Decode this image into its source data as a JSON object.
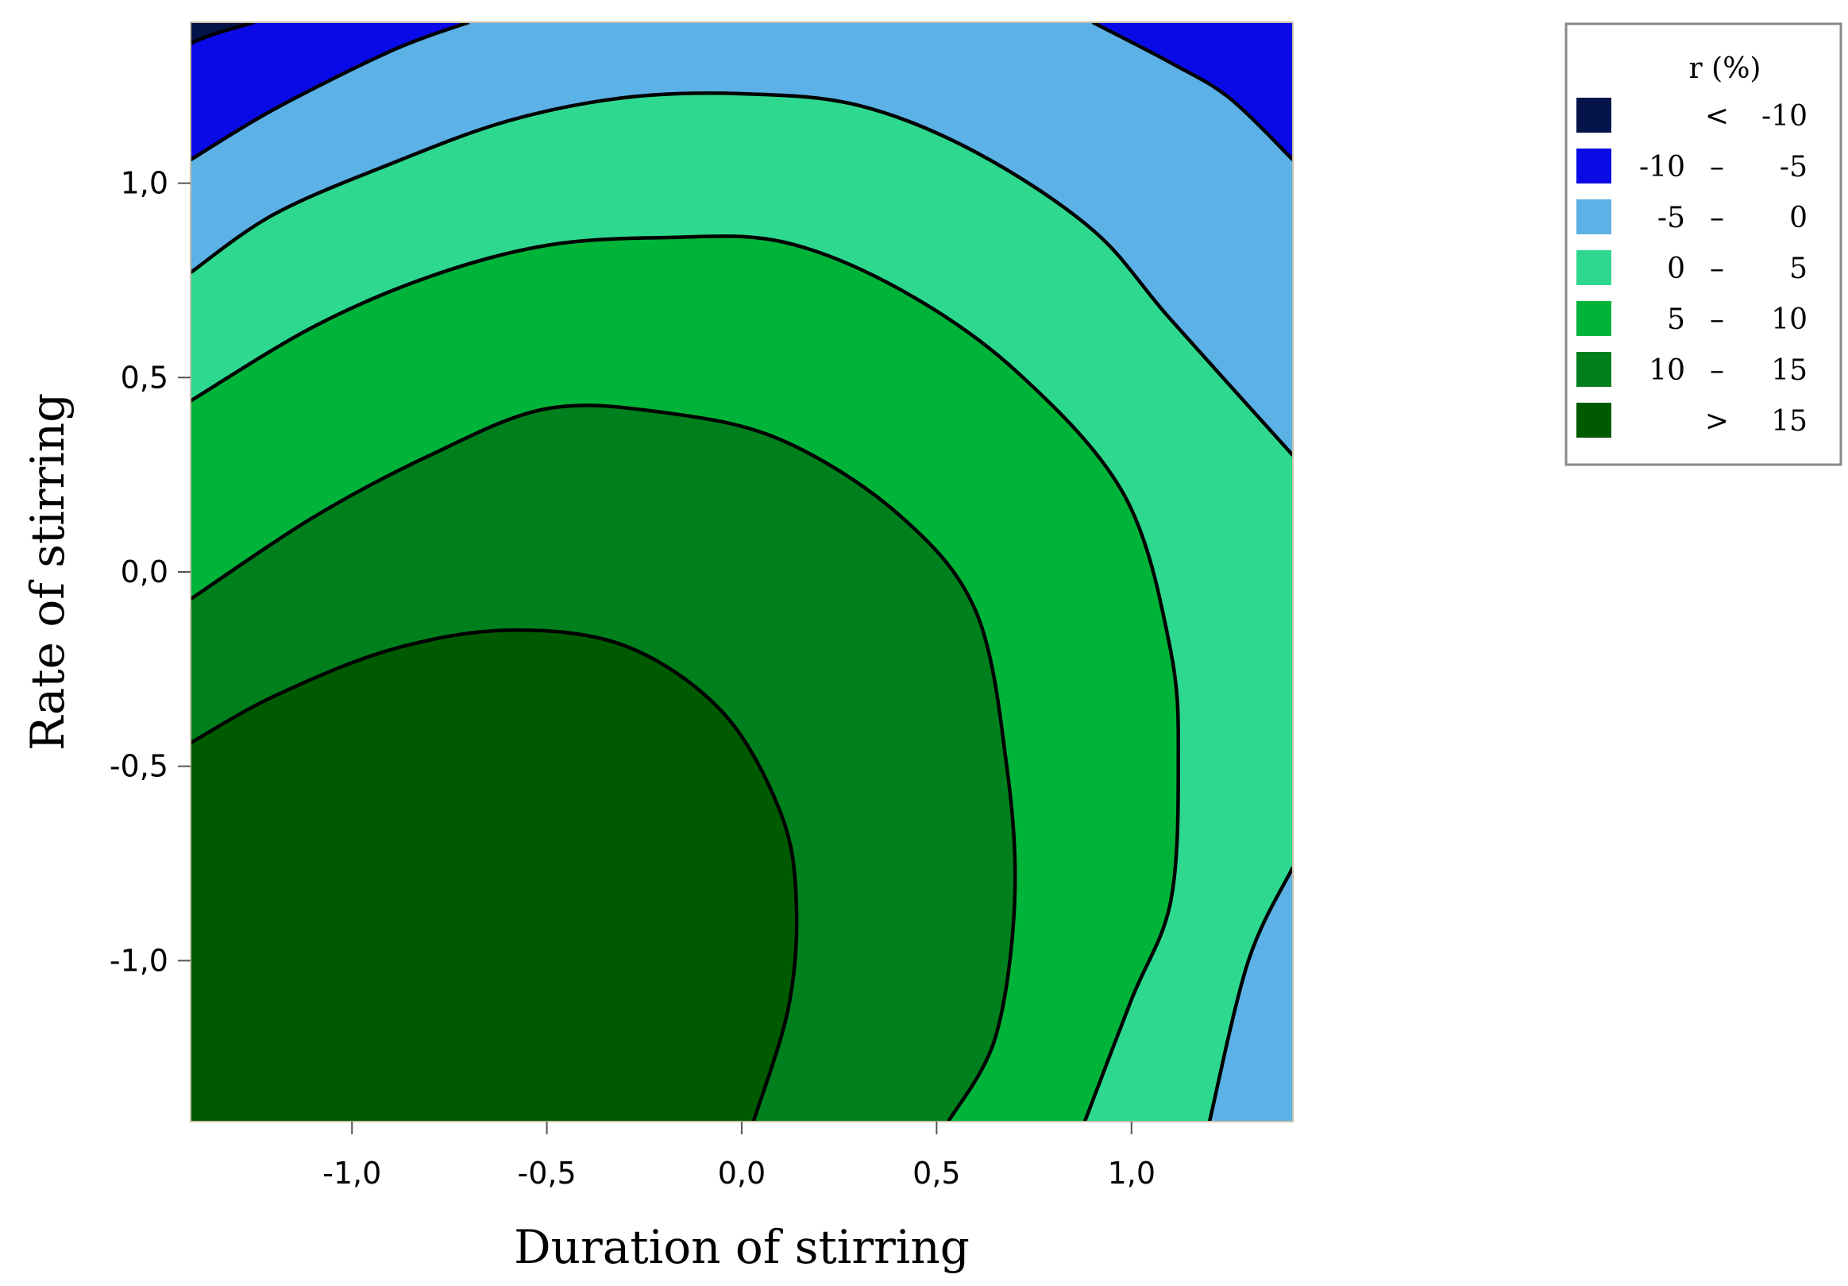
{
  "chart_data": {
    "type": "contour",
    "xlabel": "Duration of stirring",
    "ylabel": "Rate of stirring",
    "xlim": [
      -1.414,
      1.414
    ],
    "ylim": [
      -1.414,
      1.414
    ],
    "xticks": [
      -1.0,
      -0.5,
      0.0,
      0.5,
      1.0
    ],
    "yticks": [
      -1.0,
      -0.5,
      0.0,
      0.5,
      1.0
    ],
    "xtick_labels": [
      "-1,0",
      "-0,5",
      "0,0",
      "0,5",
      "1,0"
    ],
    "ytick_labels": [
      "-1,0",
      "-0,5",
      "0,0",
      "0,5",
      "1,0"
    ],
    "contour_levels": [
      -10,
      -5,
      0,
      5,
      10,
      15
    ],
    "contour_lines": [
      {
        "level": 15,
        "points": [
          [
            -1.414,
            -0.44
          ],
          [
            -1.2,
            -0.32
          ],
          [
            -0.9,
            -0.2
          ],
          [
            -0.6,
            -0.15
          ],
          [
            -0.3,
            -0.19
          ],
          [
            -0.05,
            -0.36
          ],
          [
            0.1,
            -0.62
          ],
          [
            0.14,
            -0.85
          ],
          [
            0.12,
            -1.12
          ],
          [
            0.03,
            -1.414
          ]
        ]
      },
      {
        "level": 10,
        "points": [
          [
            -1.414,
            -0.07
          ],
          [
            -1.1,
            0.14
          ],
          [
            -0.8,
            0.3
          ],
          [
            -0.5,
            0.42
          ],
          [
            -0.2,
            0.41
          ],
          [
            0.1,
            0.34
          ],
          [
            0.4,
            0.15
          ],
          [
            0.6,
            -0.1
          ],
          [
            0.68,
            -0.5
          ],
          [
            0.7,
            -0.85
          ],
          [
            0.65,
            -1.2
          ],
          [
            0.53,
            -1.414
          ]
        ]
      },
      {
        "level": 5,
        "points": [
          [
            -1.414,
            0.44
          ],
          [
            -1.1,
            0.63
          ],
          [
            -0.8,
            0.76
          ],
          [
            -0.5,
            0.84
          ],
          [
            -0.2,
            0.86
          ],
          [
            0.1,
            0.85
          ],
          [
            0.4,
            0.73
          ],
          [
            0.7,
            0.52
          ],
          [
            0.98,
            0.2
          ],
          [
            1.1,
            -0.2
          ],
          [
            1.12,
            -0.5
          ],
          [
            1.1,
            -0.85
          ],
          [
            1.0,
            -1.1
          ],
          [
            0.88,
            -1.414
          ]
        ]
      },
      {
        "level": 0,
        "points": [
          [
            -1.414,
            0.77
          ],
          [
            -1.2,
            0.92
          ],
          [
            -0.9,
            1.05
          ],
          [
            -0.6,
            1.16
          ],
          [
            -0.3,
            1.22
          ],
          [
            0.0,
            1.23
          ],
          [
            0.3,
            1.2
          ],
          [
            0.6,
            1.08
          ],
          [
            0.9,
            0.88
          ],
          [
            1.1,
            0.65
          ],
          [
            1.414,
            0.3
          ]
        ]
      },
      {
        "level": 0,
        "points": [
          [
            1.414,
            -0.76
          ],
          [
            1.3,
            -1.0
          ],
          [
            1.2,
            -1.414
          ]
        ]
      },
      {
        "level": -5,
        "points": [
          [
            -1.414,
            1.06
          ],
          [
            -1.2,
            1.19
          ],
          [
            -0.9,
            1.34
          ],
          [
            -0.7,
            1.414
          ]
        ]
      },
      {
        "level": -5,
        "points": [
          [
            0.9,
            1.414
          ],
          [
            1.1,
            1.31
          ],
          [
            1.25,
            1.22
          ],
          [
            1.414,
            1.06
          ]
        ]
      },
      {
        "level": -10,
        "points": [
          [
            -1.414,
            1.36
          ],
          [
            -1.35,
            1.385
          ],
          [
            -1.25,
            1.414
          ]
        ]
      }
    ],
    "legend": {
      "title": "r (%)",
      "placement": "top-right",
      "entries": [
        {
          "lo": "",
          "sep": "<",
          "hi": "-10",
          "color": "#05154a"
        },
        {
          "lo": "-10",
          "sep": "–",
          "hi": "-5",
          "color": "#0a0ae6"
        },
        {
          "lo": "-5",
          "sep": "–",
          "hi": "0",
          "color": "#5cb1e6"
        },
        {
          "lo": "0",
          "sep": "–",
          "hi": "5",
          "color": "#2ed98f"
        },
        {
          "lo": "5",
          "sep": "–",
          "hi": "10",
          "color": "#00b43a"
        },
        {
          "lo": "10",
          "sep": "–",
          "hi": "15",
          "color": "#00801c"
        },
        {
          "lo": "",
          "sep": ">",
          "hi": "15",
          "color": "#005b00"
        }
      ]
    }
  }
}
